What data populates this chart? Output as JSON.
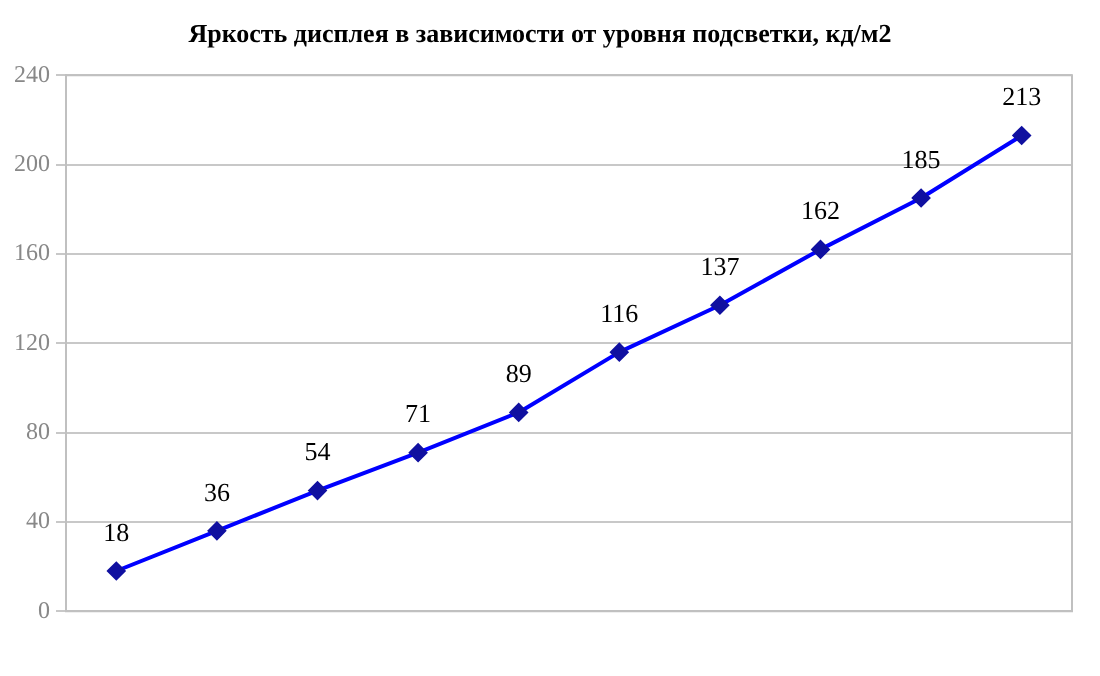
{
  "chart_data": {
    "type": "line",
    "title": "Яркость дисплея в зависимости от уровня подсветки, кд/м2",
    "categories": [
      null,
      null,
      null,
      null,
      null,
      null,
      null,
      null,
      null,
      null
    ],
    "series": [
      {
        "color": "#0000ff",
        "values": [
          18,
          36,
          54,
          71,
          89,
          116,
          137,
          162,
          185,
          213
        ]
      }
    ],
    "ylim": [
      0,
      240
    ],
    "yticks": [
      0,
      40,
      80,
      120,
      160,
      200,
      240
    ],
    "grid": "y",
    "legend": false,
    "marker": "diamond",
    "line_style": "solid",
    "data_labels": true
  }
}
